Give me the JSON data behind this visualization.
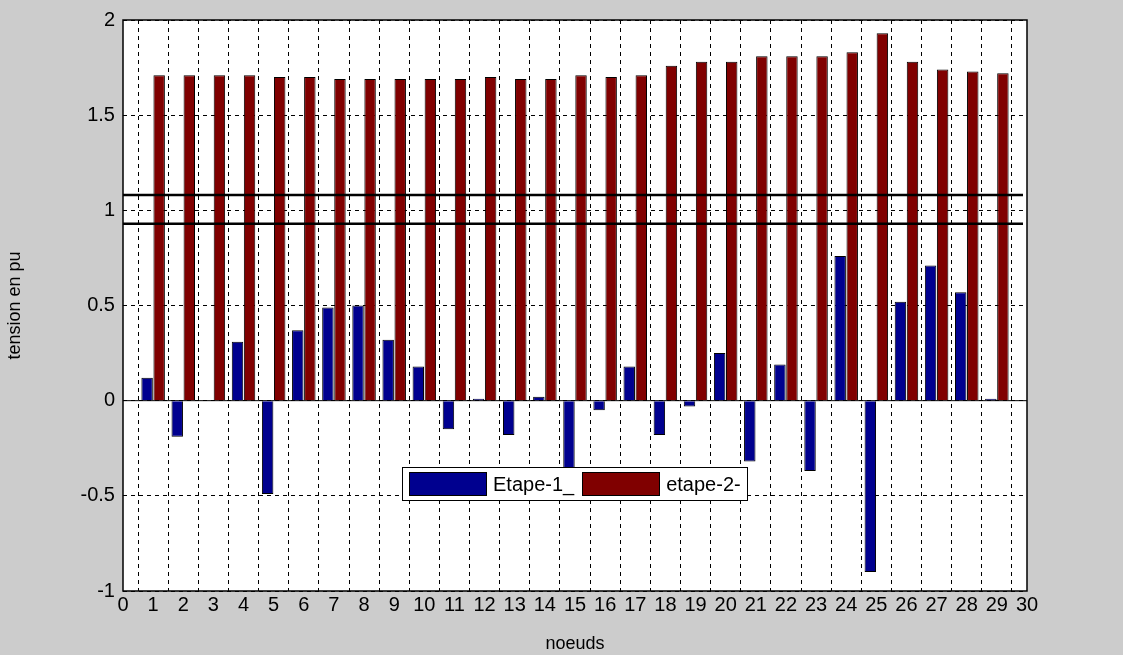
{
  "chart_data": {
    "type": "bar",
    "xlabel": "noeuds",
    "ylabel": "tension en pu",
    "x": [
      1,
      2,
      3,
      4,
      5,
      6,
      7,
      8,
      9,
      10,
      11,
      12,
      13,
      14,
      15,
      16,
      17,
      18,
      19,
      20,
      21,
      22,
      23,
      24,
      25,
      26,
      27,
      28,
      29
    ],
    "series": [
      {
        "name": "Etape-1_",
        "color": "#00008f",
        "values": [
          0.12,
          -0.19,
          0,
          0.31,
          -0.49,
          0.37,
          0.49,
          0.5,
          0.32,
          0.18,
          -0.15,
          0.01,
          -0.18,
          0.02,
          -0.36,
          -0.05,
          0.18,
          -0.18,
          -0.03,
          0.25,
          -0.32,
          0.19,
          -0.37,
          0.76,
          -0.9,
          0.52,
          0.71,
          0.57,
          0.01
        ]
      },
      {
        "name": "etape-2-",
        "color": "#800000",
        "values": [
          1.71,
          1.71,
          1.71,
          1.71,
          1.7,
          1.7,
          1.69,
          1.69,
          1.69,
          1.69,
          1.69,
          1.7,
          1.69,
          1.69,
          1.71,
          1.7,
          1.71,
          1.76,
          1.78,
          1.78,
          1.81,
          1.81,
          1.81,
          1.83,
          1.93,
          1.78,
          1.74,
          1.73,
          1.72
        ]
      }
    ],
    "xlim": [
      0,
      30
    ],
    "xticks": [
      0,
      1,
      2,
      3,
      4,
      5,
      6,
      7,
      8,
      9,
      10,
      11,
      12,
      13,
      14,
      15,
      16,
      17,
      18,
      19,
      20,
      21,
      22,
      23,
      24,
      25,
      26,
      27,
      28,
      29,
      30
    ],
    "ylim": [
      -1,
      2
    ],
    "yticks": [
      -1,
      -0.5,
      0,
      0.5,
      1,
      1.5,
      2
    ],
    "ref_lines": [
      {
        "axis": "y",
        "value": 1.08,
        "color": "#000000",
        "line_style": "solid"
      },
      {
        "axis": "y",
        "value": 0.93,
        "color": "#000000",
        "line_style": "solid"
      }
    ],
    "grid": true,
    "legend": "bottom"
  }
}
